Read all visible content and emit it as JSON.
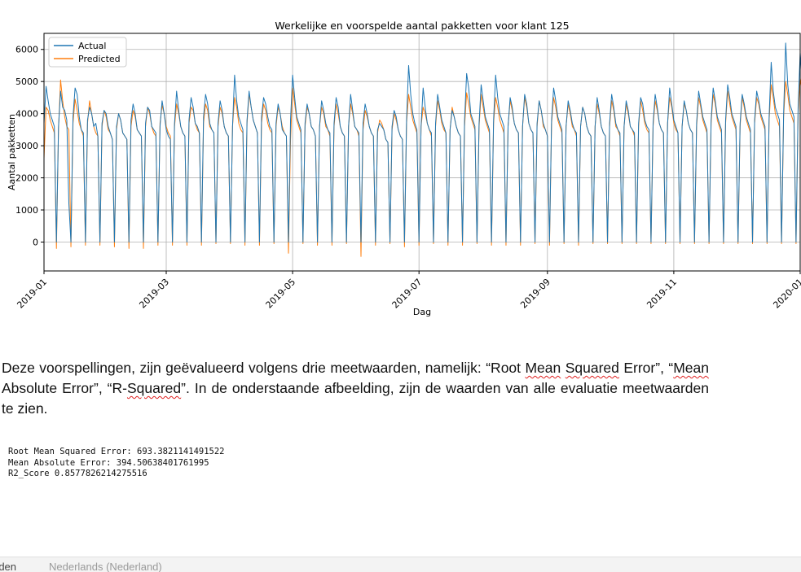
{
  "chart_data": {
    "type": "line",
    "title": "Werkelijke en voorspelde aantal pakketten voor klant 125",
    "xlabel": "Dag",
    "ylabel": "Aantal pakketten",
    "x_range": [
      "2019-01-01",
      "2020-01-01"
    ],
    "ylim": [
      -900,
      6500
    ],
    "xticks": [
      "2019-01",
      "2019-03",
      "2019-05",
      "2019-07",
      "2019-09",
      "2019-11",
      "2020-01"
    ],
    "yticks": [
      0,
      1000,
      2000,
      3000,
      4000,
      5000,
      6000
    ],
    "grid": true,
    "legend": "top-left",
    "series": [
      {
        "name": "Actual",
        "color": "#1f77b4",
        "weekly_values": [
          [
            3700,
            4850,
            4400,
            4000,
            3800,
            3600,
            0
          ],
          [
            3600,
            4700,
            4200,
            4100,
            3800,
            1200,
            0
          ],
          [
            3900,
            4800,
            4600,
            3900,
            3500,
            3400,
            0
          ],
          [
            3800,
            4200,
            4000,
            3600,
            3700,
            3300,
            0
          ],
          [
            3700,
            4100,
            4000,
            3600,
            3400,
            3200,
            0
          ],
          [
            3600,
            4000,
            3800,
            3400,
            3300,
            3200,
            0
          ],
          [
            3800,
            4300,
            4000,
            3500,
            3400,
            3300,
            0
          ],
          [
            3700,
            4200,
            4100,
            3600,
            3500,
            3400,
            0
          ],
          [
            3600,
            4400,
            4000,
            3500,
            3300,
            3200,
            0
          ],
          [
            3700,
            4700,
            4100,
            3600,
            3400,
            3300,
            0
          ],
          [
            3800,
            4500,
            4200,
            3700,
            3600,
            3400,
            0
          ],
          [
            3900,
            4600,
            4300,
            3700,
            3500,
            3400,
            0
          ],
          [
            3700,
            4400,
            4100,
            3600,
            3400,
            3300,
            0
          ],
          [
            3600,
            5200,
            4400,
            3900,
            3700,
            3500,
            0
          ],
          [
            3800,
            4700,
            4200,
            3800,
            3600,
            3400,
            0
          ],
          [
            3900,
            4500,
            4300,
            3900,
            3600,
            3500,
            0
          ],
          [
            3700,
            4300,
            4000,
            3500,
            3400,
            3300,
            0
          ],
          [
            3800,
            5200,
            4500,
            3900,
            3700,
            3500,
            0
          ],
          [
            3700,
            4300,
            4000,
            3600,
            3500,
            3300,
            0
          ],
          [
            3600,
            4400,
            4100,
            3700,
            3500,
            3400,
            0
          ],
          [
            3700,
            4500,
            4200,
            3600,
            3400,
            3300,
            0
          ],
          [
            3600,
            4600,
            4100,
            3600,
            3500,
            3400,
            0
          ],
          [
            3700,
            4300,
            4000,
            3600,
            3400,
            3300,
            0
          ],
          [
            3500,
            3700,
            3600,
            3500,
            3200,
            3100,
            0
          ],
          [
            3600,
            4100,
            3900,
            3500,
            3300,
            3200,
            0
          ],
          [
            3800,
            5500,
            4600,
            4000,
            3700,
            3500,
            0
          ],
          [
            3600,
            4800,
            4200,
            3700,
            3500,
            3400,
            0
          ],
          [
            3700,
            4600,
            4200,
            3800,
            3600,
            3400,
            0
          ],
          [
            3500,
            4100,
            3900,
            3600,
            3400,
            3300,
            0
          ],
          [
            3800,
            5250,
            4800,
            4000,
            3800,
            3600,
            0
          ],
          [
            3700,
            4900,
            4400,
            3900,
            3700,
            3500,
            0
          ],
          [
            3800,
            5200,
            4500,
            4000,
            3800,
            3600,
            0
          ],
          [
            3600,
            4500,
            4200,
            3700,
            3500,
            3400,
            0
          ],
          [
            3600,
            4600,
            4300,
            3700,
            3500,
            3400,
            0
          ],
          [
            3700,
            4400,
            4100,
            3700,
            3500,
            3300,
            0
          ],
          [
            3800,
            4800,
            4400,
            3900,
            3700,
            3500,
            0
          ],
          [
            3600,
            4400,
            4100,
            3700,
            3500,
            3400,
            0
          ],
          [
            3600,
            4200,
            4000,
            3600,
            3400,
            3300,
            0
          ],
          [
            3600,
            4500,
            4100,
            3600,
            3400,
            3300,
            0
          ],
          [
            3700,
            4600,
            4200,
            3700,
            3500,
            3400,
            0
          ],
          [
            3600,
            4400,
            4100,
            3600,
            3500,
            3400,
            0
          ],
          [
            3700,
            4500,
            4300,
            3800,
            3600,
            3500,
            0
          ],
          [
            3700,
            4600,
            4200,
            3700,
            3500,
            3400,
            0
          ],
          [
            3700,
            4800,
            4300,
            3800,
            3600,
            3400,
            0
          ],
          [
            3600,
            4400,
            4100,
            3700,
            3500,
            3400,
            0
          ],
          [
            3700,
            4700,
            4300,
            3900,
            3700,
            3500,
            0
          ],
          [
            3800,
            4800,
            4400,
            3900,
            3700,
            3500,
            0
          ],
          [
            3800,
            4900,
            4500,
            4000,
            3800,
            3600,
            0
          ],
          [
            3700,
            4600,
            4300,
            3900,
            3700,
            3500,
            0
          ],
          [
            3800,
            4700,
            4400,
            4000,
            3800,
            3600,
            0
          ],
          [
            3900,
            5600,
            4700,
            4200,
            4000,
            3800,
            0
          ],
          [
            4000,
            6200,
            4900,
            4300,
            4100,
            3900,
            0
          ],
          [
            4200,
            5900,
            5000,
            4400,
            4200,
            4000,
            0
          ],
          [
            4100,
            6250,
            5100,
            4500,
            4200,
            4100,
            0
          ],
          [
            4200,
            5400,
            4600,
            3000,
            1000,
            4800,
            0
          ]
        ]
      },
      {
        "name": "Predicted",
        "color": "#ff7f0e",
        "weekly_values": [
          [
            2600,
            4200,
            4100,
            3800,
            3600,
            3400,
            -200
          ],
          [
            3500,
            5050,
            4400,
            3900,
            3600,
            3500,
            -150
          ],
          [
            3700,
            4450,
            4100,
            3700,
            3500,
            3300,
            -100
          ],
          [
            3700,
            4400,
            4000,
            3600,
            3400,
            3300,
            -100
          ],
          [
            3600,
            4100,
            3900,
            3500,
            3400,
            3200,
            -150
          ],
          [
            3500,
            4000,
            3800,
            3400,
            3300,
            3200,
            -200
          ],
          [
            3600,
            4100,
            3900,
            3500,
            3400,
            3300,
            -200
          ],
          [
            3600,
            4200,
            4000,
            3600,
            3400,
            3300,
            -100
          ],
          [
            3700,
            4250,
            4000,
            3600,
            3400,
            3300,
            -100
          ],
          [
            3600,
            4300,
            4000,
            3600,
            3400,
            3300,
            -100
          ],
          [
            3700,
            4200,
            4100,
            3700,
            3500,
            3400,
            -100
          ],
          [
            3700,
            4300,
            4100,
            3600,
            3500,
            3400,
            -50
          ],
          [
            3600,
            4200,
            4000,
            3600,
            3400,
            3300,
            -50
          ],
          [
            3600,
            4500,
            4200,
            3700,
            3500,
            3400,
            -100
          ],
          [
            3700,
            4600,
            4200,
            3800,
            3600,
            3400,
            -100
          ],
          [
            3700,
            4300,
            4100,
            3700,
            3500,
            3400,
            -50
          ],
          [
            3600,
            4200,
            4000,
            3600,
            3400,
            3300,
            -350
          ],
          [
            3200,
            4800,
            4300,
            3800,
            3600,
            3400,
            -50
          ],
          [
            3600,
            4200,
            4000,
            3600,
            3500,
            3300,
            -100
          ],
          [
            3600,
            4200,
            4000,
            3600,
            3500,
            3300,
            -100
          ],
          [
            3600,
            4300,
            4000,
            3600,
            3400,
            3300,
            -50
          ],
          [
            3600,
            4300,
            4000,
            3600,
            3500,
            3300,
            -450
          ],
          [
            3500,
            4100,
            3900,
            3600,
            3400,
            3300,
            -100
          ],
          [
            3400,
            3800,
            3700,
            3500,
            3200,
            3100,
            -50
          ],
          [
            3500,
            4000,
            3800,
            3500,
            3300,
            3200,
            -150
          ],
          [
            3700,
            4600,
            4200,
            3800,
            3600,
            3400,
            -100
          ],
          [
            3600,
            4200,
            4000,
            3700,
            3500,
            3300,
            -50
          ],
          [
            3600,
            4400,
            4100,
            3700,
            3500,
            3400,
            -100
          ],
          [
            3500,
            4200,
            3900,
            3600,
            3400,
            3300,
            -100
          ],
          [
            3600,
            4650,
            4300,
            3900,
            3700,
            3500,
            -50
          ],
          [
            3600,
            4600,
            4200,
            3800,
            3600,
            3400,
            -100
          ],
          [
            3700,
            4500,
            4200,
            3800,
            3600,
            3400,
            -100
          ],
          [
            3600,
            4400,
            4100,
            3700,
            3500,
            3400,
            -100
          ],
          [
            3600,
            4500,
            4200,
            3700,
            3500,
            3400,
            -50
          ],
          [
            3600,
            4400,
            4100,
            3600,
            3500,
            3300,
            -100
          ],
          [
            3700,
            4500,
            4200,
            3800,
            3600,
            3400,
            -50
          ],
          [
            3600,
            4300,
            4000,
            3600,
            3500,
            3300,
            -100
          ],
          [
            3600,
            4200,
            4000,
            3600,
            3400,
            3300,
            -50
          ],
          [
            3600,
            4300,
            4000,
            3600,
            3400,
            3300,
            -50
          ],
          [
            3600,
            4400,
            4100,
            3600,
            3500,
            3300,
            -50
          ],
          [
            3600,
            4300,
            4000,
            3600,
            3500,
            3300,
            -50
          ],
          [
            3600,
            4400,
            4100,
            3700,
            3500,
            3400,
            -50
          ],
          [
            3600,
            4400,
            4100,
            3700,
            3500,
            3400,
            -50
          ],
          [
            3700,
            4500,
            4200,
            3700,
            3500,
            3400,
            -50
          ],
          [
            3600,
            4300,
            4100,
            3700,
            3500,
            3400,
            -50
          ],
          [
            3600,
            4500,
            4200,
            3800,
            3600,
            3400,
            -50
          ],
          [
            3700,
            4600,
            4300,
            3800,
            3600,
            3400,
            -50
          ],
          [
            3700,
            4700,
            4300,
            3900,
            3700,
            3500,
            -50
          ],
          [
            3600,
            4500,
            4200,
            3800,
            3600,
            3400,
            -50
          ],
          [
            3700,
            4500,
            4300,
            3900,
            3700,
            3500,
            -50
          ],
          [
            3800,
            4900,
            4500,
            4000,
            3800,
            3600,
            -50
          ],
          [
            3900,
            5000,
            4600,
            4100,
            3900,
            3700,
            -50
          ],
          [
            4000,
            5100,
            4700,
            4200,
            4000,
            3800,
            -50
          ],
          [
            4100,
            5100,
            4800,
            4200,
            4000,
            3900,
            -350
          ],
          [
            4000,
            4700,
            4300,
            3500,
            -600,
            3600,
            2100
          ]
        ]
      }
    ]
  },
  "text": {
    "p1_a": "Deze voorspellingen, zijn geëvalueerd volgens drie meetwaarden, namelijk: “Root ",
    "p1_w1": "Mean",
    "p1_b": " ",
    "p1_w2": "Squared",
    "p1_c": " Error”, “",
    "p1_w3": "Mean",
    "p1_d": " Absolute Error”, “R-",
    "p1_w4": "Squared",
    "p1_e": "”. In de onderstaande afbeelding, zijn de waarden van alle evaluatie meetwaarden te zien."
  },
  "output_lines": [
    "Root Mean Squared Error: 693.3821141491522",
    "Mean Absolute Error: 394.50638401761995",
    "R2_Score 0.8577826214275516"
  ],
  "status_bar": {
    "left": "rden",
    "language": "Nederlands (Nederland)"
  }
}
